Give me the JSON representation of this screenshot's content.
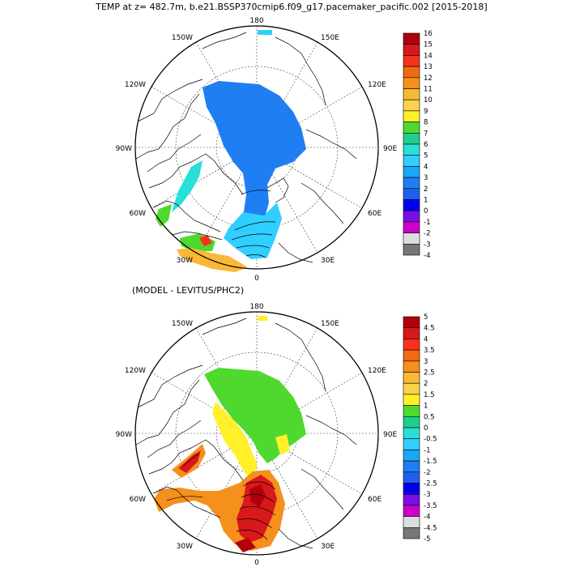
{
  "title": "TEMP at z= 482.7m, b.e21.BSSP370cmip6.f09_g17.pacemaker_pacific.002 [2015-2018]",
  "panel2_title": "(MODEL - LEVITUS/PHC2)",
  "lon_labels": {
    "top": "180",
    "bottom": "0",
    "left": "90W",
    "right": "90E",
    "upper_left_a": "150W",
    "upper_left_b": "120W",
    "upper_right_a": "150E",
    "upper_right_b": "120E",
    "lower_left_a": "60W",
    "lower_left_b": "30W",
    "lower_right_a": "60E",
    "lower_right_b": "30E"
  },
  "colorbar1": {
    "labels": [
      "16",
      "15",
      "14",
      "13",
      "12",
      "11",
      "10",
      "9",
      "8",
      "7",
      "6",
      "5",
      "4",
      "3",
      "2",
      "1",
      "0",
      "-1",
      "-2",
      "-3",
      "-4"
    ],
    "colors": [
      "#b0000c",
      "#d8181a",
      "#f8301c",
      "#f26a10",
      "#f5901c",
      "#fab838",
      "#fcd24a",
      "#fff02a",
      "#4fd92e",
      "#1fcf8e",
      "#28e0d8",
      "#30cfff",
      "#1aa8f5",
      "#1f7ff2",
      "#1f5ff0",
      "#0000ee",
      "#7a0ee6",
      "#cc00cc",
      "#dddddd",
      "#777777"
    ]
  },
  "colorbar2": {
    "labels": [
      "5",
      "4.5",
      "4",
      "3.5",
      "3",
      "2.5",
      "2",
      "1.5",
      "1",
      "0.5",
      "0",
      "-0.5",
      "-1",
      "-1.5",
      "-2",
      "-2.5",
      "-3",
      "-3.5",
      "-4",
      "-4.5",
      "-5"
    ],
    "colors": [
      "#b0000c",
      "#d8181a",
      "#f8301c",
      "#f26a10",
      "#f5901c",
      "#fab838",
      "#fcd24a",
      "#fff02a",
      "#4fd92e",
      "#1fcf8e",
      "#28e0d8",
      "#30cfff",
      "#1aa8f5",
      "#1f7ff2",
      "#1f5ff0",
      "#0000ee",
      "#7a0ee6",
      "#cc00cc",
      "#dddddd",
      "#777777"
    ]
  },
  "fill_colors": {
    "p1_main": "#1f7ff2",
    "p1_cyan": "#30cfff",
    "p1_light": "#28e0d8",
    "p1_green": "#4fd92e",
    "p1_orange": "#fab838",
    "p1_red": "#f8301c",
    "p2_green": "#4fd92e",
    "p2_yellow": "#fff02a",
    "p2_orange": "#f5901c",
    "p2_red": "#d8181a",
    "p2_dark": "#b0000c"
  }
}
